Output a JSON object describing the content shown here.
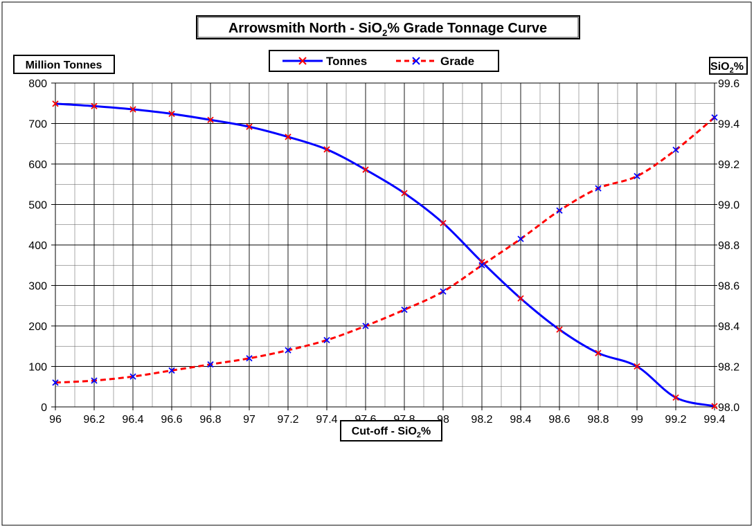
{
  "chart_data": {
    "type": "line",
    "title": {
      "main": "Arrowsmith North - SiO",
      "sub": "2",
      "rest": "% Grade Tonnage Curve"
    },
    "xlabel": {
      "main": "Cut-off - SiO",
      "sub": "2",
      "rest": "%"
    },
    "ylabel_left": "Million  Tonnes",
    "ylabel_right": {
      "main": "SiO",
      "sub": "2",
      "rest": "%"
    },
    "x": [
      96,
      96.2,
      96.4,
      96.6,
      96.8,
      97,
      97.2,
      97.4,
      97.6,
      97.8,
      98,
      98.2,
      98.4,
      98.6,
      98.8,
      99,
      99.2,
      99.4
    ],
    "x_tick_labels": [
      "96",
      "96.2",
      "96.4",
      "96.6",
      "96.8",
      "97",
      "97.2",
      "97.4",
      "97.6",
      "97.8",
      "98",
      "98.2",
      "98.4",
      "98.6",
      "98.8",
      "99",
      "99.2",
      "99.4"
    ],
    "y_left_ticks": [
      "0",
      "100",
      "200",
      "300",
      "400",
      "500",
      "600",
      "700",
      "800"
    ],
    "y_right_ticks": [
      "98.0",
      "98.2",
      "98.4",
      "98.6",
      "98.8",
      "99.0",
      "99.2",
      "99.4",
      "99.6"
    ],
    "xlim": [
      96,
      99.4
    ],
    "ylim_left": [
      0,
      800
    ],
    "ylim_right": [
      98.0,
      99.6
    ],
    "grid": true,
    "legend_placement": "top-center",
    "series": [
      {
        "name": "Tonnes",
        "axis": "left",
        "color": "#0000ff",
        "marker_color": "#ff0000",
        "line_style": "solid",
        "values": [
          749,
          743,
          735,
          724,
          709,
          692,
          667,
          636,
          586,
          528,
          454,
          358,
          268,
          191,
          133,
          100,
          23,
          2
        ]
      },
      {
        "name": "Grade",
        "axis": "right",
        "color": "#ff0000",
        "marker_color": "#0000ff",
        "line_style": "dashed",
        "values": [
          98.12,
          98.13,
          98.15,
          98.18,
          98.21,
          98.24,
          98.28,
          98.33,
          98.4,
          98.48,
          98.57,
          98.7,
          98.83,
          98.97,
          99.08,
          99.14,
          99.27,
          99.43
        ]
      }
    ]
  }
}
